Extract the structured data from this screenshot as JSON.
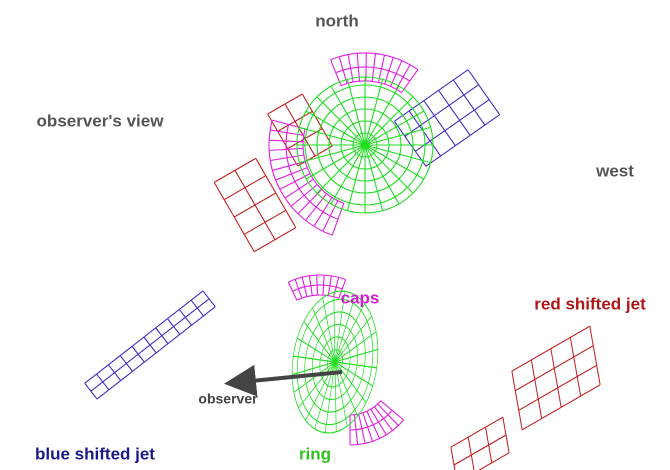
{
  "labels": {
    "north": "north",
    "observers_view": "observer's view",
    "west": "west",
    "caps": "caps",
    "red_jet": "red shifted jet",
    "observer": "observer",
    "blue_jet": "blue shifted jet",
    "ring": "ring"
  }
}
